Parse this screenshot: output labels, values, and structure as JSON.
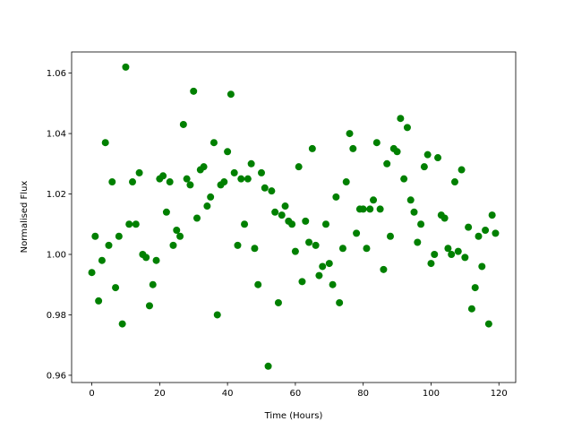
{
  "chart_data": {
    "type": "scatter",
    "x_label": "Time (Hours)",
    "y_label": "Normalised Flux",
    "color": "#008000",
    "grid": false,
    "xlim": [
      -5.95,
      124.95
    ],
    "ylim": [
      0.9576,
      1.067
    ],
    "xticks": [
      0,
      20,
      40,
      60,
      80,
      100,
      120
    ],
    "yticks": [
      0.96,
      0.98,
      {
        "value": 1,
        "label": "1.00"
      },
      1.02,
      1.04,
      1.06
    ],
    "x": [
      0,
      1,
      2,
      3,
      4,
      5,
      6,
      7,
      8,
      9,
      10,
      11,
      12,
      13,
      14,
      15,
      16,
      17,
      18,
      19,
      20,
      21,
      22,
      23,
      24,
      25,
      26,
      27,
      28,
      29,
      30,
      31,
      32,
      33,
      34,
      35,
      36,
      37,
      38,
      39,
      40,
      41,
      42,
      43,
      44,
      45,
      46,
      47,
      48,
      49,
      50,
      51,
      52,
      53,
      54,
      55,
      56,
      57,
      58,
      59,
      60,
      61,
      62,
      63,
      64,
      65,
      66,
      67,
      68,
      69,
      70,
      71,
      72,
      73,
      74,
      75,
      76,
      77,
      78,
      79,
      80,
      81,
      82,
      83,
      84,
      85,
      86,
      87,
      88,
      89,
      90,
      91,
      92,
      93,
      94,
      95,
      96,
      97,
      98,
      99,
      100,
      101,
      102,
      103,
      104,
      105,
      106,
      107,
      108,
      109,
      110,
      111,
      112,
      113,
      114,
      115,
      116,
      117,
      118,
      119
    ],
    "values": [
      0.994,
      1.006,
      0.9846,
      0.998,
      1.037,
      1.003,
      1.024,
      0.989,
      1.006,
      0.977,
      1.062,
      1.01,
      1.024,
      1.01,
      1.027,
      1.0,
      0.999,
      0.983,
      0.99,
      0.998,
      1.025,
      1.026,
      1.014,
      1.024,
      1.003,
      1.008,
      1.006,
      1.043,
      1.025,
      1.023,
      1.054,
      1.012,
      1.028,
      1.029,
      1.016,
      1.019,
      1.037,
      0.98,
      1.023,
      1.024,
      1.034,
      1.053,
      1.027,
      1.003,
      1.025,
      1.01,
      1.025,
      1.03,
      1.002,
      0.99,
      1.027,
      1.022,
      0.963,
      1.021,
      1.014,
      0.984,
      1.013,
      1.016,
      1.011,
      1.01,
      1.001,
      1.029,
      0.991,
      1.011,
      1.004,
      1.035,
      1.003,
      0.993,
      0.996,
      1.01,
      0.997,
      0.99,
      1.019,
      0.984,
      1.002,
      1.024,
      1.04,
      1.035,
      1.007,
      1.015,
      1.015,
      1.002,
      1.015,
      1.018,
      1.037,
      1.015,
      0.995,
      1.03,
      1.006,
      1.035,
      1.034,
      1.045,
      1.025,
      1.042,
      1.018,
      1.014,
      1.004,
      1.01,
      1.029,
      1.033,
      0.997,
      1.0,
      1.032,
      1.013,
      1.012,
      1.002,
      1.0,
      1.024,
      1.001,
      1.028,
      0.999,
      1.009,
      0.982,
      0.989,
      1.006,
      0.996,
      1.008,
      0.977,
      1.013,
      1.007
    ]
  }
}
